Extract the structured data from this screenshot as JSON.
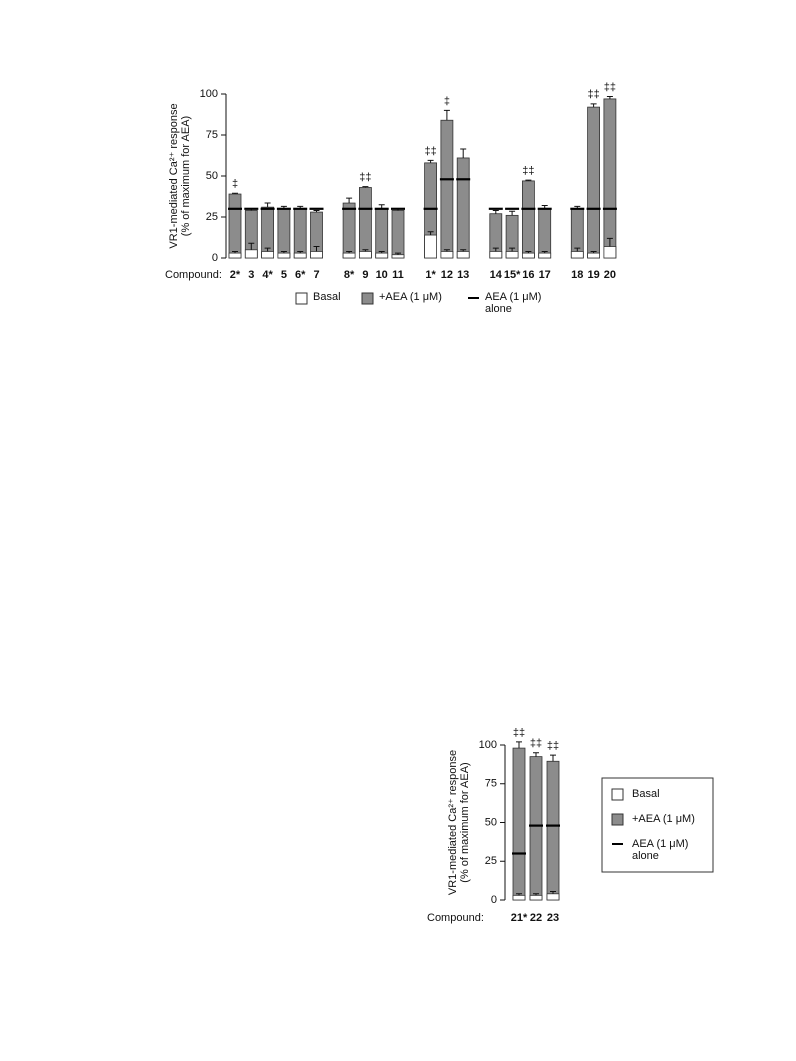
{
  "chart_data": [
    {
      "type": "bar",
      "categories": [
        "2*",
        "3",
        "4*",
        "5",
        "6*",
        "7",
        null,
        "8*",
        "9",
        "10",
        "11",
        null,
        "1*",
        "12",
        "13",
        null,
        "14",
        "15*",
        "16",
        "17",
        null,
        "18",
        "19",
        "20"
      ],
      "xlabel": "Compound:",
      "ylabel": [
        "VR1-mediated Ca²⁺ response",
        "(% of maximum for AEA)"
      ],
      "ylim": [
        0,
        100
      ],
      "yticks": [
        0,
        25,
        50,
        75,
        100
      ],
      "legend": "bottom",
      "series": [
        {
          "name": "Basal",
          "color": "#ffffff",
          "mark": "bar",
          "values": [
            3,
            5,
            4,
            3,
            3,
            4,
            null,
            3,
            4,
            3,
            2,
            null,
            14,
            4,
            4,
            null,
            4,
            4,
            3,
            3,
            null,
            4,
            3,
            7
          ],
          "errors": [
            1,
            4,
            2,
            1,
            1,
            3,
            null,
            1,
            1,
            1,
            1,
            null,
            2,
            1,
            1,
            null,
            2,
            2,
            1,
            1,
            null,
            2,
            1,
            5
          ]
        },
        {
          "name": "+AEA (1 μM)",
          "color": "#8c8c8c",
          "mark": "bar",
          "values": [
            39,
            29,
            31,
            30,
            30,
            28,
            null,
            33.5,
            43,
            30,
            29,
            null,
            58,
            84,
            61,
            null,
            27,
            26,
            47,
            30,
            null,
            30,
            92,
            97
          ],
          "errors": [
            0.5,
            1,
            2.5,
            1.5,
            1.5,
            1,
            null,
            3,
            0.5,
            2.5,
            1,
            null,
            1.5,
            6,
            5.5,
            null,
            2,
            2.5,
            0.5,
            2,
            null,
            1.5,
            2,
            1.5
          ]
        },
        {
          "name": "AEA (1 μM) alone",
          "color": "#000000",
          "mark": "line",
          "values": [
            30,
            30,
            30,
            30,
            30,
            30,
            null,
            30,
            30,
            30,
            30,
            null,
            30,
            48,
            48,
            null,
            30,
            30,
            30,
            30,
            null,
            30,
            30,
            30
          ]
        }
      ],
      "markers": [
        "‡",
        null,
        null,
        null,
        null,
        null,
        null,
        null,
        "‡‡",
        null,
        null,
        null,
        "‡‡",
        "‡",
        null,
        null,
        null,
        null,
        "‡‡",
        null,
        null,
        null,
        "‡‡",
        "‡‡"
      ]
    },
    {
      "type": "bar",
      "categories": [
        "21*",
        "22",
        "23"
      ],
      "xlabel": "Compound:",
      "ylabel": [
        "VR1-mediated Ca²⁺ response",
        "(% of maximum for AEA)"
      ],
      "ylim": [
        0,
        100
      ],
      "yticks": [
        0,
        25,
        50,
        75,
        100
      ],
      "legend": "right",
      "series": [
        {
          "name": "Basal",
          "color": "#ffffff",
          "mark": "bar",
          "values": [
            3,
            3,
            4
          ],
          "errors": [
            1,
            1,
            1.5
          ]
        },
        {
          "name": "+AEA (1 μM)",
          "color": "#8c8c8c",
          "mark": "bar",
          "values": [
            98,
            92.5,
            89.5
          ],
          "errors": [
            4,
            2.5,
            4
          ]
        },
        {
          "name": "AEA (1 μM) alone",
          "color": "#000000",
          "mark": "line",
          "values": [
            30,
            48,
            48
          ]
        }
      ],
      "markers": [
        "‡‡",
        "‡‡",
        "‡‡"
      ]
    }
  ]
}
